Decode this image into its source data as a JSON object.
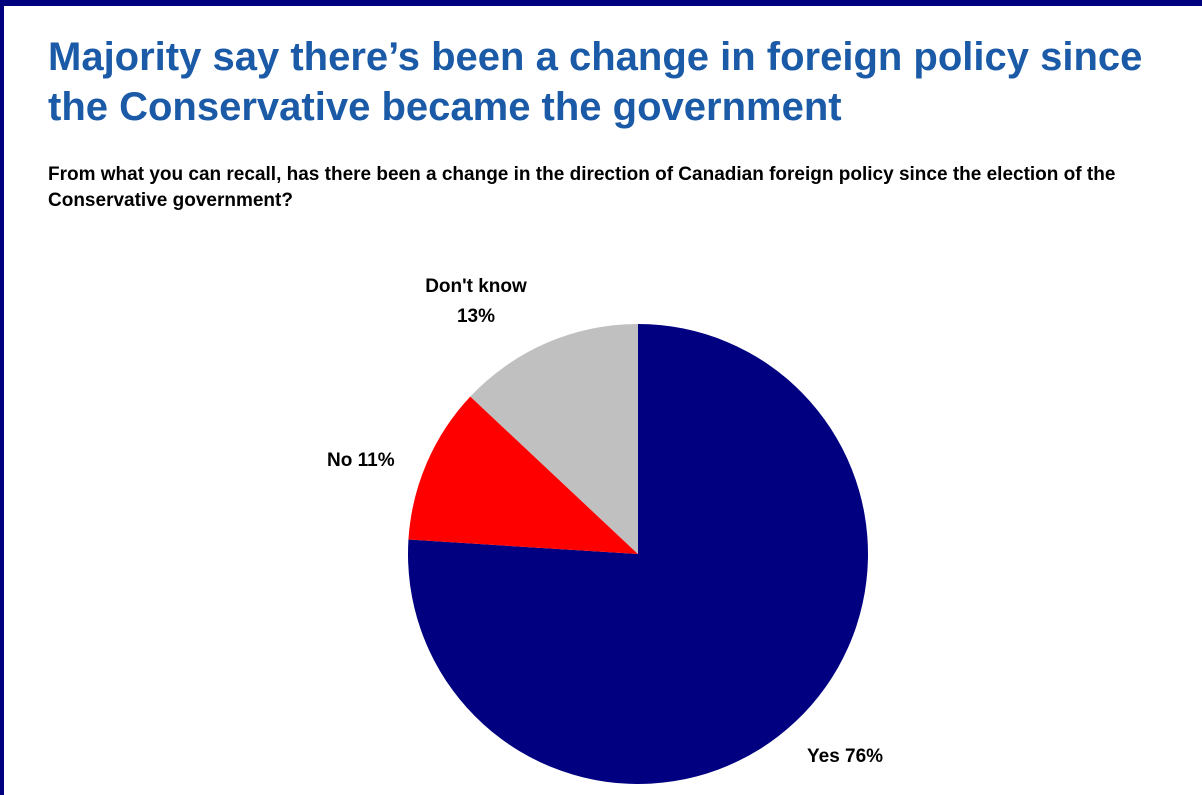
{
  "title": "Majority say there’s been a change in foreign policy since the Conservative became the government",
  "subtitle": "From what you can recall, has there been a change in the direction of Canadian foreign policy since the election of the Conservative government?",
  "colors": {
    "frame": "#00007f",
    "title": "#1a5aa6"
  },
  "chart_data": {
    "type": "pie",
    "title": "Majority say there’s been a change in foreign policy since the Conservative became the government",
    "subtitle": "From what you can recall, has there been a change in the direction of Canadian foreign policy since the election of the Conservative government?",
    "start_angle_deg": 0,
    "direction": "clockwise",
    "slices": [
      {
        "label": "Yes",
        "value": 76,
        "display": "Yes 76%",
        "color": "#000080"
      },
      {
        "label": "No",
        "value": 11,
        "display": "No 11%",
        "color": "#ff0000"
      },
      {
        "label": "Don't know",
        "value": 13,
        "display": "Don't know",
        "display_value": "13%",
        "color": "#c0c0c0"
      }
    ]
  }
}
